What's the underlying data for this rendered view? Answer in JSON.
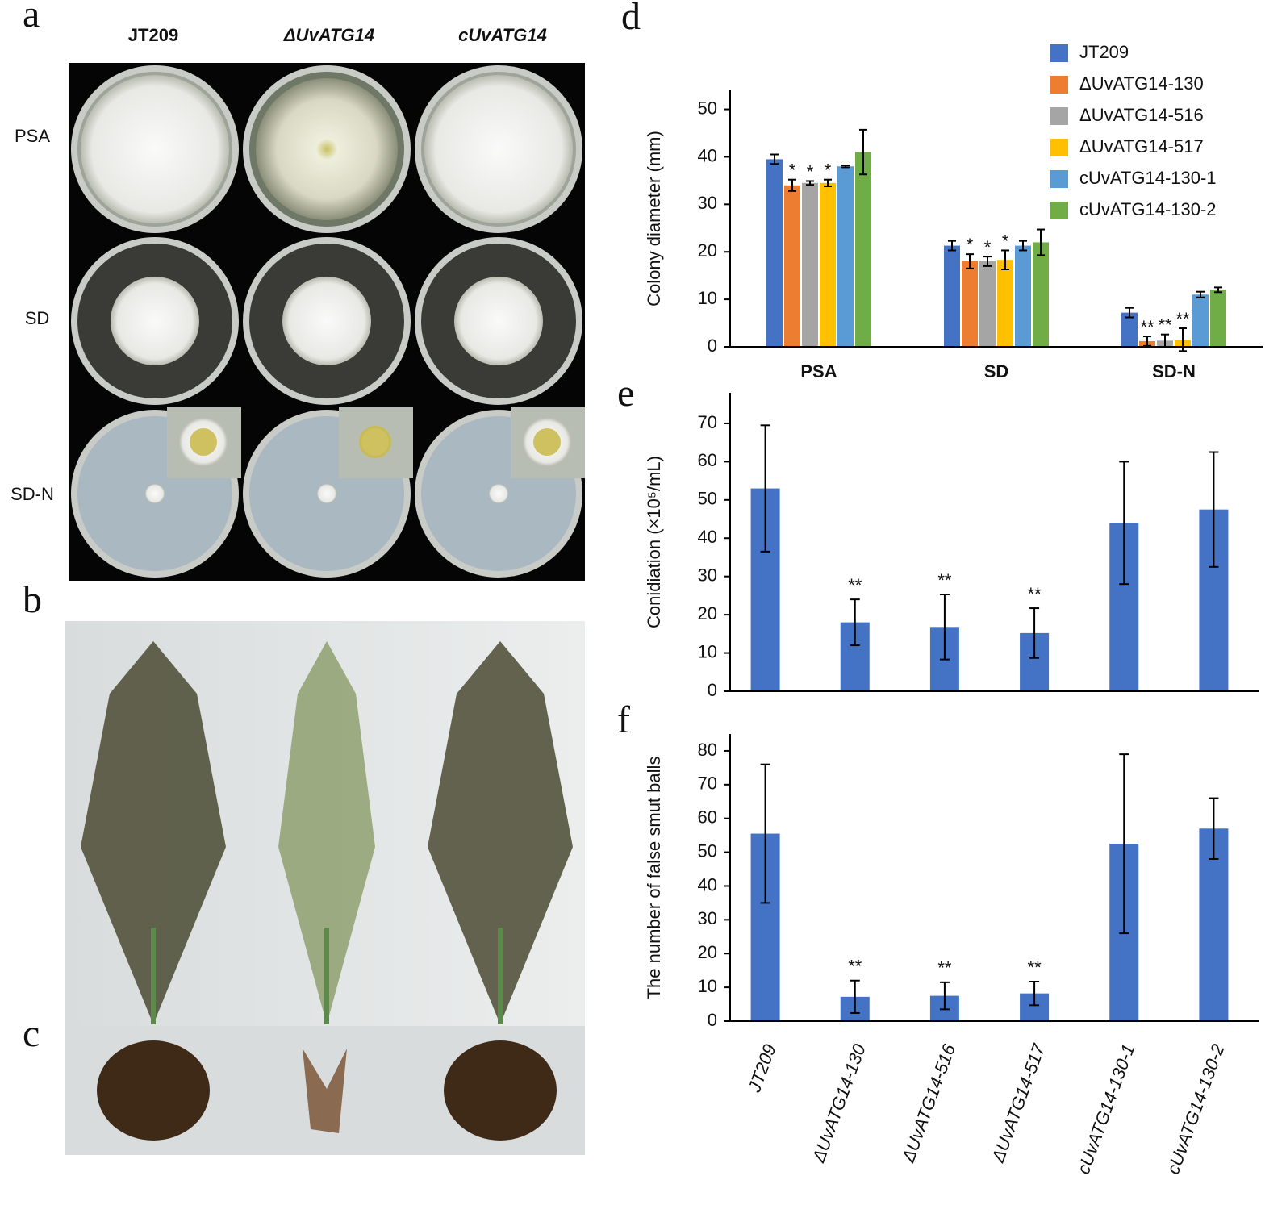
{
  "photos": {
    "panel_labels": [
      "a",
      "b",
      "c"
    ],
    "columns": [
      "JT209",
      "ΔUvATG14",
      "cUvATG14"
    ],
    "rows": [
      "PSA",
      "SD",
      "SD-N"
    ]
  },
  "chart_data": [
    {
      "type": "grouped_bar",
      "panel_label": "d",
      "y_label": "Colony diameter (mm)",
      "categories": [
        "PSA",
        "SD",
        "SD-N"
      ],
      "series": [
        {
          "name": "JT209",
          "color": "#4472c4",
          "values": [
            39.5,
            21.3,
            7.2
          ],
          "errors": [
            1.0,
            1.0,
            1.0
          ],
          "significance": [
            null,
            null,
            null
          ]
        },
        {
          "name": "ΔUvATG14-130",
          "color": "#ed7d31",
          "values": [
            34.0,
            18.0,
            1.2
          ],
          "errors": [
            1.2,
            1.5,
            1.0
          ],
          "significance": [
            "*",
            "*",
            "**"
          ]
        },
        {
          "name": "ΔUvATG14-516",
          "color": "#a5a5a5",
          "values": [
            34.5,
            18.0,
            1.3
          ],
          "errors": [
            0.4,
            1.0,
            1.3
          ],
          "significance": [
            "*",
            "*",
            "**"
          ]
        },
        {
          "name": "ΔUvATG14-517",
          "color": "#ffc000",
          "values": [
            34.5,
            18.3,
            1.5
          ],
          "errors": [
            0.7,
            2.0,
            2.4
          ],
          "significance": [
            "*",
            "*",
            "**"
          ]
        },
        {
          "name": "cUvATG14-130-1",
          "color": "#5b9bd5",
          "values": [
            38.0,
            21.3,
            11.0
          ],
          "errors": [
            0.2,
            1.0,
            0.6
          ],
          "significance": [
            null,
            null,
            null
          ]
        },
        {
          "name": "cUvATG14-130-2",
          "color": "#70ad47",
          "values": [
            41.0,
            22.0,
            12.0
          ],
          "errors": [
            4.7,
            2.7,
            0.5
          ],
          "significance": [
            null,
            null,
            null
          ]
        }
      ],
      "ylim": [
        0,
        54
      ],
      "yticks": [
        0,
        10,
        20,
        30,
        40,
        50
      ],
      "legend": "top-right"
    },
    {
      "type": "bar",
      "panel_label": "e",
      "y_label": "Conidiation (×10⁵/mL)",
      "categories": [
        null,
        null,
        null,
        null,
        null,
        null
      ],
      "values": [
        53.0,
        18.0,
        16.8,
        15.2,
        44.0,
        47.5
      ],
      "errors": [
        16.5,
        6.0,
        8.5,
        6.5,
        16.0,
        15.0
      ],
      "significance": [
        null,
        "**",
        "**",
        "**",
        null,
        null
      ],
      "color": "#4472c4",
      "ylim": [
        0,
        78
      ],
      "yticks": [
        0,
        10,
        20,
        30,
        40,
        50,
        60,
        70
      ]
    },
    {
      "type": "bar",
      "panel_label": "f",
      "y_label": "The number of false smut balls",
      "categories": [
        "JT209",
        "ΔUvATG14-130",
        "ΔUvATG14-516",
        "ΔUvATG14-517",
        "cUvATG14-130-1",
        "cUvATG14-130-2"
      ],
      "values": [
        55.5,
        7.2,
        7.5,
        8.2,
        52.5,
        57.0
      ],
      "errors": [
        20.5,
        4.8,
        4.0,
        3.5,
        26.5,
        9.0
      ],
      "significance": [
        null,
        "**",
        "**",
        "**",
        null,
        null
      ],
      "color": "#4472c4",
      "ylim": [
        0,
        85
      ],
      "yticks": [
        0,
        10,
        20,
        30,
        40,
        50,
        60,
        70,
        80
      ]
    }
  ]
}
